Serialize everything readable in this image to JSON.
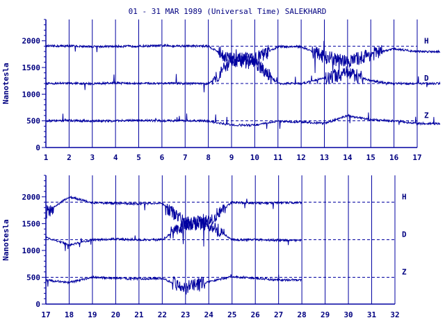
{
  "title": "01 - 31 MAR 1989 (Universal Time) SALEKHARD",
  "ylabel": "Nanotesla",
  "colors": {
    "ink": "#0000a0",
    "label": "#000080"
  },
  "chart_data": [
    {
      "type": "line",
      "panel": "upper",
      "x_ticks": [
        "1",
        "2",
        "3",
        "4",
        "5",
        "6",
        "7",
        "8",
        "9",
        "10",
        "11",
        "12",
        "13",
        "14",
        "15",
        "16",
        "17"
      ],
      "xlim": [
        1,
        17
      ],
      "ylim": [
        0,
        2400
      ],
      "y_ticks": [
        "0",
        "500",
        "1000",
        "1500",
        "2000"
      ],
      "grid": true,
      "series": [
        {
          "name": "H",
          "baseline": 1900,
          "values": [
            1900,
            1905,
            1890,
            1895,
            1900,
            1910,
            1905,
            1900,
            1650,
            1650,
            1890,
            1890,
            1700,
            1600,
            1750,
            1850,
            1800
          ]
        },
        {
          "name": "D",
          "baseline": 1200,
          "values": [
            1200,
            1205,
            1195,
            1210,
            1200,
            1205,
            1200,
            1195,
            1600,
            1600,
            1200,
            1200,
            1300,
            1400,
            1250,
            1200,
            1200
          ]
        },
        {
          "name": "Z",
          "baseline": 500,
          "values": [
            500,
            505,
            495,
            500,
            510,
            500,
            505,
            495,
            420,
            420,
            490,
            480,
            450,
            600,
            520,
            500,
            450
          ]
        }
      ]
    },
    {
      "type": "line",
      "panel": "lower",
      "x_ticks": [
        "17",
        "18",
        "19",
        "20",
        "21",
        "22",
        "23",
        "24",
        "25",
        "26",
        "27",
        "28",
        "29",
        "30",
        "31",
        "32"
      ],
      "xlim": [
        17,
        32
      ],
      "ylim": [
        0,
        2400
      ],
      "y_ticks": [
        "0",
        "500",
        "1000",
        "1500",
        "2000"
      ],
      "grid": true,
      "series": [
        {
          "name": "H",
          "baseline": 1900,
          "values": [
            1700,
            2000,
            1890,
            1880,
            1870,
            1880,
            1500,
            1550,
            1900,
            1880,
            1890
          ]
        },
        {
          "name": "D",
          "baseline": 1200,
          "values": [
            1250,
            1100,
            1200,
            1210,
            1200,
            1200,
            1500,
            1500,
            1200,
            1200,
            1190
          ]
        },
        {
          "name": "Z",
          "baseline": 500,
          "values": [
            450,
            400,
            500,
            480,
            470,
            480,
            300,
            420,
            510,
            480,
            450
          ]
        }
      ]
    }
  ]
}
